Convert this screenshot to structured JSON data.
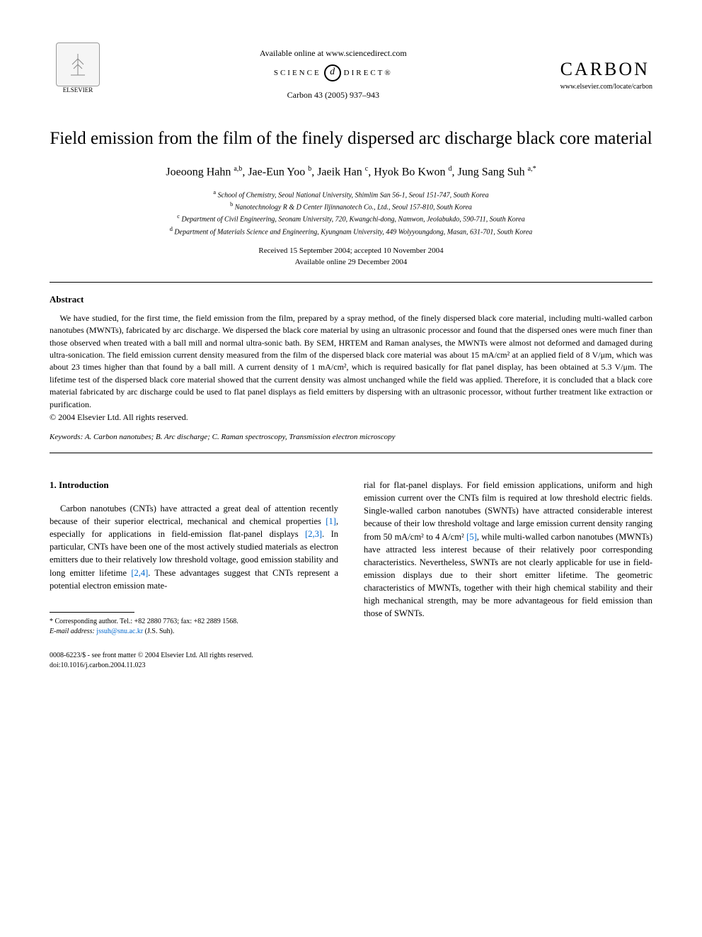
{
  "header": {
    "available_online": "Available online at www.sciencedirect.com",
    "sciencedirect_left": "SCIENCE",
    "sciencedirect_right": "DIRECT®",
    "sd_d": "d",
    "journal_ref": "Carbon 43 (2005) 937–943",
    "elsevier": "ELSEVIER",
    "journal_logo": "CARBON",
    "journal_url": "www.elsevier.com/locate/carbon"
  },
  "title": "Field emission from the film of the finely dispersed arc discharge black core material",
  "authors_html": "Joeoong Hahn <sup>a,b</sup>, Jae-Eun Yoo <sup>b</sup>, Jaeik Han <sup>c</sup>, Hyok Bo Kwon <sup>d</sup>, Jung Sang Suh <sup>a,*</sup>",
  "affiliations": [
    "<sup>a</sup> School of Chemistry, Seoul National University, Shimlim San 56-1, Seoul 151-747, South Korea",
    "<sup>b</sup> Nanotechnology R & D Center Iljinnanotech Co., Ltd., Seoul 157-810, South Korea",
    "<sup>c</sup> Department of Civil Engineering, Seonam University, 720, Kwangchi-dong, Namwon, Jeolabukdo, 590-711, South Korea",
    "<sup>d</sup> Department of Materials Science and Engineering, Kyungnam University, 449 Wolyyoungdong, Masan, 631-701, South Korea"
  ],
  "dates": {
    "received": "Received 15 September 2004; accepted 10 November 2004",
    "online": "Available online 29 December 2004"
  },
  "abstract": {
    "heading": "Abstract",
    "body": "We have studied, for the first time, the field emission from the film, prepared by a spray method, of the finely dispersed black core material, including multi-walled carbon nanotubes (MWNTs), fabricated by arc discharge. We dispersed the black core material by using an ultrasonic processor and found that the dispersed ones were much finer than those observed when treated with a ball mill and normal ultra-sonic bath. By SEM, HRTEM and Raman analyses, the MWNTs were almost not deformed and damaged during ultra-sonication. The field emission current density measured from the film of the dispersed black core material was about 15 mA/cm² at an applied field of 8 V/μm, which was about 23 times higher than that found by a ball mill. A current density of 1 mA/cm², which is required basically for flat panel display, has been obtained at 5.3 V/μm. The lifetime test of the dispersed black core material showed that the current density was almost unchanged while the field was applied. Therefore, it is concluded that a black core material fabricated by arc discharge could be used to flat panel displays as field emitters by dispersing with an ultrasonic processor, without further treatment like extraction or purification.",
    "copyright": "© 2004 Elsevier Ltd. All rights reserved."
  },
  "keywords": {
    "label": "Keywords:",
    "text": " A. Carbon nanotubes; B. Arc discharge; C. Raman spectroscopy, Transmission electron microscopy"
  },
  "section1": {
    "heading": "1. Introduction",
    "col1": "Carbon nanotubes (CNTs) have attracted a great deal of attention recently because of their superior electrical, mechanical and chemical properties <span class=\"ref-link\">[1]</span>, especially for applications in field-emission flat-panel displays <span class=\"ref-link\">[2,3]</span>. In particular, CNTs have been one of the most actively studied materials as electron emitters due to their relatively low threshold voltage, good emission stability and long emitter lifetime <span class=\"ref-link\">[2,4]</span>. These advantages suggest that CNTs represent a potential electron emission mate-",
    "col2": "rial for flat-panel displays. For field emission applications, uniform and high emission current over the CNTs film is required at low threshold electric fields. Single-walled carbon nanotubes (SWNTs) have attracted considerable interest because of their low threshold voltage and large emission current density ranging from 50 mA/cm² to 4 A/cm² <span class=\"ref-link\">[5]</span>, while multi-walled carbon nanotubes (MWNTs) have attracted less interest because of their relatively poor corresponding characteristics. Nevertheless, SWNTs are not clearly applicable for use in field-emission displays due to their short emitter lifetime. The geometric characteristics of MWNTs, together with their high chemical stability and their high mechanical strength, may be more advantageous for field emission than those of SWNTs."
  },
  "footnote": {
    "corresponding": "* Corresponding author. Tel.: +82 2880 7763; fax: +82 2889 1568.",
    "email_label": "E-mail address:",
    "email": "jssuh@snu.ac.kr",
    "email_suffix": " (J.S. Suh)."
  },
  "footer": {
    "line1": "0008-6223/$ - see front matter © 2004 Elsevier Ltd. All rights reserved.",
    "line2": "doi:10.1016/j.carbon.2004.11.023"
  }
}
